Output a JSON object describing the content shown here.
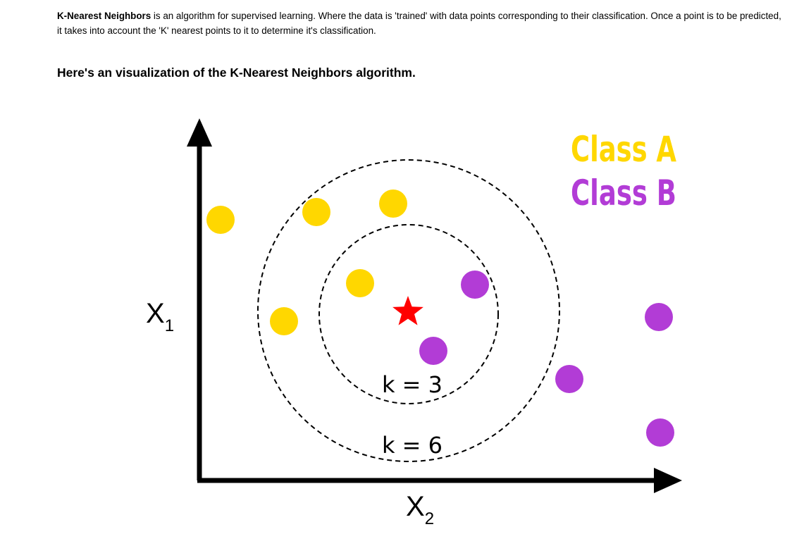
{
  "intro": {
    "term": "K-Nearest Neighbors",
    "text": " is an algorithm for supervised learning. Where the data is 'trained' with data points corresponding to their classification. Once a point is to be predicted, it takes into account the 'K' nearest points to it to determine it's classification."
  },
  "heading": "Here's an visualization of the K-Nearest Neighbors algorithm.",
  "diagram": {
    "axis_x": {
      "main": "X",
      "sub": "2"
    },
    "axis_y": {
      "main": "X",
      "sub": "1"
    },
    "legend": [
      {
        "label": "Class A",
        "color": "#FFD700"
      },
      {
        "label": "Class B",
        "color": "#B23CD6"
      }
    ],
    "circles": [
      {
        "label": "k = 3"
      },
      {
        "label": "k = 6"
      }
    ],
    "query_color": "#FF0000",
    "axis_color": "#000000"
  }
}
